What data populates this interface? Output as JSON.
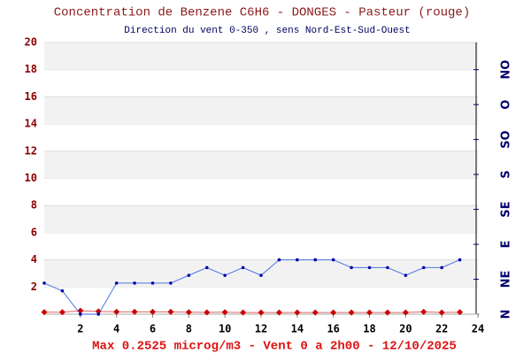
{
  "chart_data": {
    "type": "line",
    "title": "Concentration de Benzene C6H6  -   DONGES - Pasteur (rouge)",
    "subtitle": "Direction du vent 0-350 , sens Nord-Est-Sud-Ouest",
    "footer": "Max 0.2525 microg/m3 - Vent 0  a 2h00 - 12/10/2025",
    "x": [
      0,
      1,
      2,
      3,
      4,
      5,
      6,
      7,
      8,
      9,
      10,
      11,
      12,
      13,
      14,
      15,
      16,
      17,
      18,
      19,
      20,
      21,
      22,
      23
    ],
    "xlim": [
      0,
      24
    ],
    "xticks": [
      2,
      4,
      6,
      8,
      10,
      12,
      14,
      16,
      18,
      20,
      22,
      24
    ],
    "ylim": [
      0,
      20
    ],
    "yticks": [
      2,
      4,
      6,
      8,
      10,
      12,
      14,
      16,
      18,
      20
    ],
    "y2lim": [
      0,
      350
    ],
    "y2ticks": [
      {
        "value": 0,
        "label": "N"
      },
      {
        "value": 45,
        "label": "NE"
      },
      {
        "value": 90,
        "label": "E"
      },
      {
        "value": 135,
        "label": "SE"
      },
      {
        "value": 180,
        "label": "S"
      },
      {
        "value": 225,
        "label": "SO"
      },
      {
        "value": 270,
        "label": "O"
      },
      {
        "value": 315,
        "label": "NO"
      }
    ],
    "grid": true,
    "series": [
      {
        "color": "#cc0000",
        "values": [
          0.15,
          0.15,
          0.2525,
          0.2,
          0.17,
          0.17,
          0.17,
          0.17,
          0.15,
          0.13,
          0.15,
          0.12,
          0.12,
          0.12,
          0.12,
          0.12,
          0.12,
          0.12,
          0.12,
          0.12,
          0.12,
          0.17,
          0.12,
          0.15
        ]
      },
      {
        "color": "#2255dd",
        "axis": "y2",
        "values": [
          40,
          30,
          0,
          0,
          40,
          40,
          40,
          40,
          50,
          60,
          50,
          60,
          50,
          70,
          70,
          70,
          70,
          60,
          60,
          60,
          50,
          60,
          60,
          70
        ]
      }
    ]
  }
}
